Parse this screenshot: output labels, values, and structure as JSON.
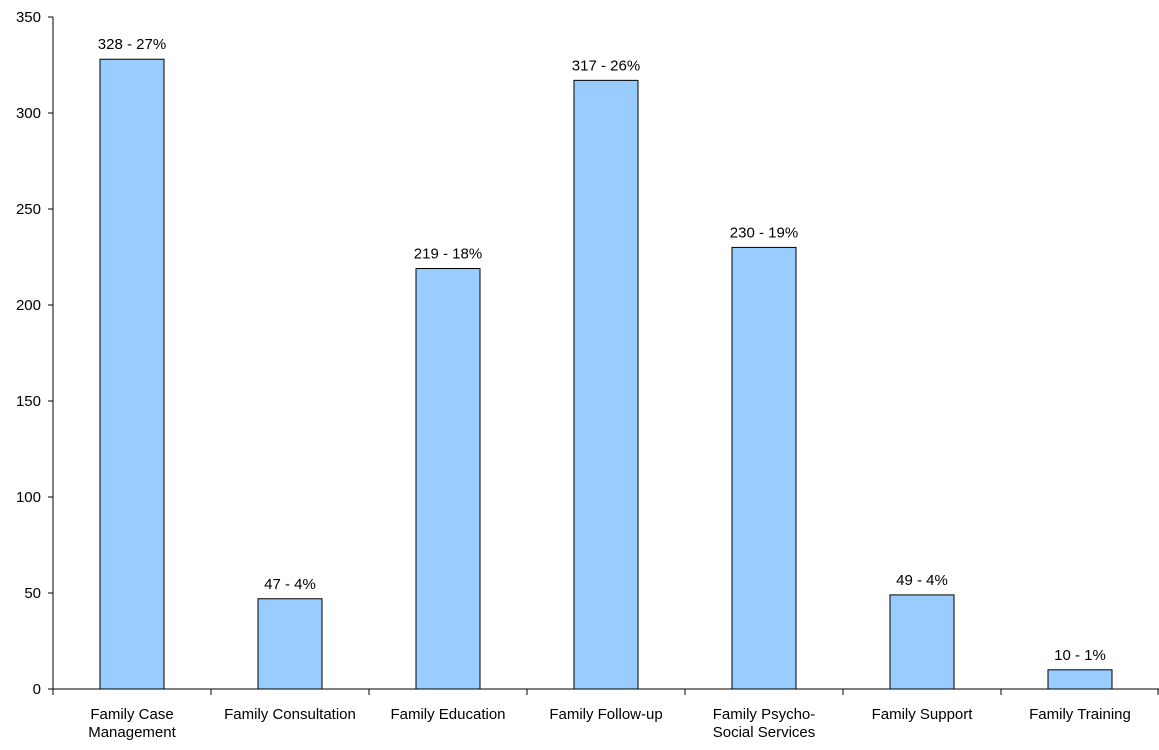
{
  "chart_data": {
    "type": "bar",
    "title": "",
    "xlabel": "",
    "ylabel": "",
    "ylim": [
      0,
      350
    ],
    "yticks": [
      0,
      50,
      100,
      150,
      200,
      250,
      300,
      350
    ],
    "grid": false,
    "legend": "none",
    "categories": [
      [
        "Family Case",
        "Management"
      ],
      [
        "Family Consultation"
      ],
      [
        "Family Education"
      ],
      [
        "Family Follow-up"
      ],
      [
        "Family Psycho-",
        "Social Services"
      ],
      [
        "Family Support"
      ],
      [
        "Family Training"
      ]
    ],
    "values": [
      328,
      47,
      219,
      317,
      230,
      49,
      10
    ],
    "data_labels": [
      "328 - 27%",
      "47 - 4%",
      "219 - 18%",
      "317 - 26%",
      "230 - 19%",
      "49 - 4%",
      "10 - 1%"
    ],
    "colors": {
      "bar_fill": "#99ccff",
      "bar_stroke": "#000000",
      "axis": "#000000"
    }
  }
}
